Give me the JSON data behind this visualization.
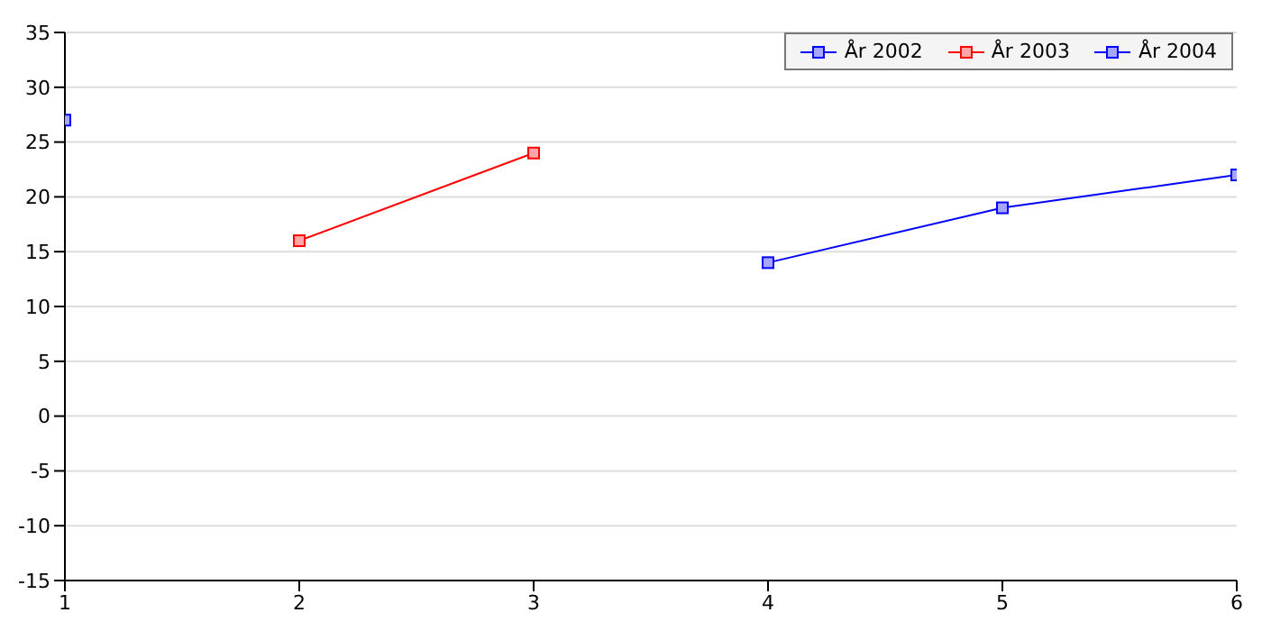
{
  "chart_data": {
    "type": "line",
    "xlim": [
      1,
      6
    ],
    "xticks": [
      1,
      2,
      3,
      4,
      5,
      6
    ],
    "ylim": [
      -15,
      35
    ],
    "yticks": [
      -15,
      -10,
      -5,
      0,
      5,
      10,
      15,
      20,
      25,
      30,
      35
    ],
    "grid": "y",
    "legend": "top right",
    "marker": "square",
    "line_style": "solid",
    "series": [
      {
        "name": "År 2002",
        "color": "#0000ff",
        "x": [
          1
        ],
        "values": [
          27
        ]
      },
      {
        "name": "År 2003",
        "color": "#ff0000",
        "x": [
          2,
          3
        ],
        "values": [
          16,
          24
        ]
      },
      {
        "name": "År 2004",
        "color": "#0000ff",
        "x": [
          4,
          5,
          6
        ],
        "values": [
          14,
          19,
          22
        ]
      }
    ]
  }
}
